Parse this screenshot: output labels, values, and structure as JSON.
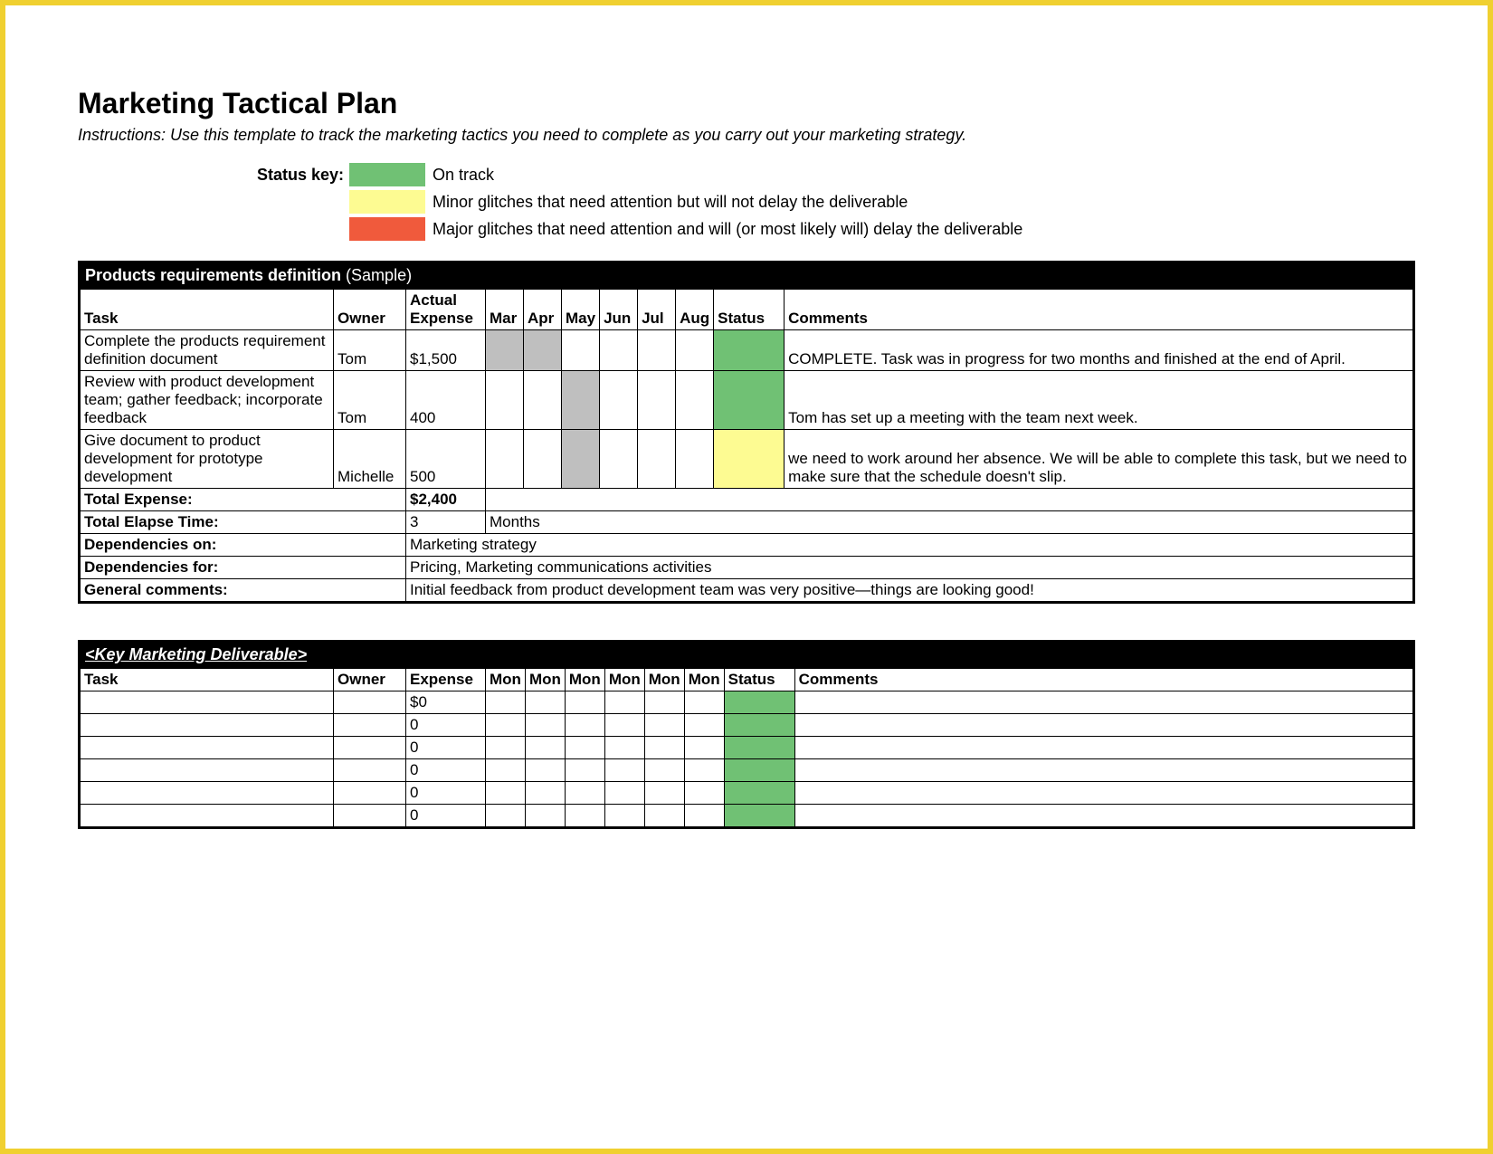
{
  "colors": {
    "frame": "#f0d030",
    "status_green": "#70c174",
    "status_yellow": "#fdfb92",
    "status_red": "#f05a3c",
    "shade_grey": "#bfbfbf",
    "black": "#000000",
    "white": "#ffffff"
  },
  "title": "Marketing Tactical Plan",
  "instructions": "Instructions: Use this template to track the marketing tactics you need to complete as you carry out your marketing strategy.",
  "status_key": {
    "label": "Status key:",
    "items": [
      {
        "color": "#70c174",
        "text": "On track"
      },
      {
        "color": "#fdfb92",
        "text": "Minor glitches that need attention but will not delay the deliverable"
      },
      {
        "color": "#f05a3c",
        "text": "Major glitches that need attention and will (or most likely will) delay the deliverable"
      }
    ]
  },
  "section1": {
    "header_main": "Products requirements definition",
    "header_suffix": " (Sample)",
    "columns": {
      "task": "Task",
      "owner": "Owner",
      "expense": "Actual Expense",
      "months": [
        "Mar",
        "Apr",
        "May",
        "Jun",
        "Jul",
        "Aug"
      ],
      "status": "Status",
      "comments": "Comments"
    },
    "rows": [
      {
        "task": "Complete the products requirement definition document",
        "owner": "Tom",
        "expense": "$1,500",
        "shaded": [
          0,
          1
        ],
        "status_color": "#70c174",
        "comments": "COMPLETE. Task was in progress for two months and finished at the end of April."
      },
      {
        "task": "Review with product development team; gather feedback; incorporate feedback",
        "owner": "Tom",
        "expense": "400",
        "shaded": [
          2
        ],
        "status_color": "#70c174",
        "comments": "Tom has set up a meeting with the team next week."
      },
      {
        "task": "Give document to product development for prototype development",
        "owner": "Michelle",
        "expense": "500",
        "shaded": [
          2
        ],
        "status_color": "#fdfb92",
        "comments": "we need to work around her absence. We will be able to complete this task, but we need to make sure that the schedule doesn't slip."
      }
    ],
    "summary": {
      "total_expense_label": "Total Expense:",
      "total_expense_value": "$2,400",
      "total_elapse_label": "Total Elapse Time:",
      "total_elapse_value": "3",
      "total_elapse_unit": "Months",
      "dep_on_label": "Dependencies on:",
      "dep_on_value": "Marketing strategy",
      "dep_for_label": "Dependencies for:",
      "dep_for_value": "Pricing, Marketing communications activities",
      "general_label": "General comments:",
      "general_value": "Initial feedback from product development team was very positive—things are looking good!"
    }
  },
  "section2": {
    "header": "<Key Marketing Deliverable>",
    "columns": {
      "task": "Task",
      "owner": "Owner",
      "expense": "Expense",
      "months": [
        "Mon",
        "Mon",
        "Mon",
        "Mon",
        "Mon",
        "Mon"
      ],
      "status": "Status",
      "comments": "Comments"
    },
    "rows": [
      {
        "expense": "$0",
        "status_color": "#70c174"
      },
      {
        "expense": "0",
        "status_color": "#70c174"
      },
      {
        "expense": "0",
        "status_color": "#70c174"
      },
      {
        "expense": "0",
        "status_color": "#70c174"
      },
      {
        "expense": "0",
        "status_color": "#70c174"
      },
      {
        "expense": "0",
        "status_color": "#70c174"
      }
    ]
  }
}
